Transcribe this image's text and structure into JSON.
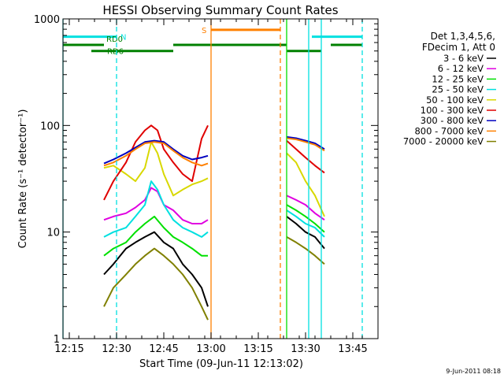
{
  "chart_data": {
    "type": "line",
    "title": "HESSI Observing Summary Count Rates",
    "xlabel": "Start Time (09-Jun-11 12:13:02)",
    "ylabel": "Count Rate (s⁻¹ detector⁻¹)",
    "y_scale": "log",
    "ylim": [
      1,
      1000
    ],
    "xlim": [
      "12:13",
      "13:53"
    ],
    "x_ticks": [
      "12:15",
      "12:30",
      "12:45",
      "13:00",
      "13:15",
      "13:30",
      "13:45"
    ],
    "y_ticks": [
      "1",
      "10",
      "100",
      "1000"
    ],
    "grid": false,
    "legend_position": "right",
    "legend_header": [
      "Det 1,3,4,5,6,",
      "FDecim 1, Att 0"
    ],
    "footer": "9-Jun-2011 08:18",
    "series": [
      {
        "name": "3 - 6 keV",
        "color": "#000000",
        "segments": [
          {
            "t": [
              "12:26",
              "12:29",
              "12:33",
              "12:36",
              "12:39",
              "12:42",
              "12:45",
              "12:48",
              "12:51",
              "12:54",
              "12:57",
              "12:59"
            ],
            "v": [
              4,
              5,
              7,
              8,
              9,
              10,
              8,
              7,
              5,
              4,
              3,
              2
            ]
          },
          {
            "t": [
              "13:24",
              "13:27",
              "13:30",
              "13:33",
              "13:36"
            ],
            "v": [
              14,
              12,
              10,
              9,
              7
            ]
          }
        ]
      },
      {
        "name": "6 - 12 keV",
        "color": "#e000e0",
        "segments": [
          {
            "t": [
              "12:26",
              "12:29",
              "12:33",
              "12:36",
              "12:39",
              "12:41",
              "12:43",
              "12:45",
              "12:48",
              "12:51",
              "12:54",
              "12:57",
              "12:59"
            ],
            "v": [
              13,
              14,
              15,
              17,
              20,
              26,
              24,
              18,
              16,
              13,
              12,
              12,
              13
            ]
          },
          {
            "t": [
              "13:24",
              "13:27",
              "13:30",
              "13:33",
              "13:36"
            ],
            "v": [
              22,
              20,
              18,
              15,
              13
            ]
          }
        ]
      },
      {
        "name": "12 - 25 keV",
        "color": "#00e000",
        "segments": [
          {
            "t": [
              "12:26",
              "12:29",
              "12:33",
              "12:36",
              "12:39",
              "12:42",
              "12:45",
              "12:48",
              "12:51",
              "12:54",
              "12:57",
              "12:59"
            ],
            "v": [
              6,
              7,
              8,
              10,
              12,
              14,
              11,
              9,
              8,
              7,
              6,
              6
            ]
          },
          {
            "t": [
              "13:24",
              "13:27",
              "13:30",
              "13:33",
              "13:36"
            ],
            "v": [
              18,
              16,
              14,
              12,
              10
            ]
          }
        ]
      },
      {
        "name": "25 - 50 keV",
        "color": "#00e0e0",
        "segments": [
          {
            "t": [
              "12:26",
              "12:29",
              "12:33",
              "12:36",
              "12:39",
              "12:41",
              "12:43",
              "12:45",
              "12:48",
              "12:51",
              "12:54",
              "12:57",
              "12:59"
            ],
            "v": [
              9,
              10,
              11,
              14,
              18,
              30,
              25,
              18,
              13,
              11,
              10,
              9,
              10
            ]
          },
          {
            "t": [
              "13:24",
              "13:27",
              "13:30",
              "13:33",
              "13:36"
            ],
            "v": [
              16,
              14,
              12,
              11,
              9
            ]
          }
        ]
      },
      {
        "name": "50 - 100 keV",
        "color": "#d8d800",
        "segments": [
          {
            "t": [
              "12:26",
              "12:29",
              "12:33",
              "12:36",
              "12:39",
              "12:41",
              "12:43",
              "12:45",
              "12:48",
              "12:51",
              "12:54",
              "12:57",
              "12:59"
            ],
            "v": [
              40,
              42,
              35,
              30,
              40,
              70,
              55,
              35,
              22,
              25,
              28,
              30,
              32
            ]
          },
          {
            "t": [
              "13:24",
              "13:27",
              "13:30",
              "13:33",
              "13:36"
            ],
            "v": [
              55,
              45,
              30,
              22,
              14
            ]
          }
        ]
      },
      {
        "name": "100 - 300 keV",
        "color": "#e00000",
        "segments": [
          {
            "t": [
              "12:26",
              "12:29",
              "12:33",
              "12:36",
              "12:39",
              "12:41",
              "12:43",
              "12:45",
              "12:48",
              "12:51",
              "12:54",
              "12:57",
              "12:59"
            ],
            "v": [
              20,
              30,
              45,
              70,
              90,
              100,
              90,
              60,
              45,
              35,
              30,
              75,
              100
            ]
          },
          {
            "t": [
              "13:24",
              "13:27",
              "13:30",
              "13:33",
              "13:36"
            ],
            "v": [
              72,
              60,
              50,
              42,
              36
            ]
          }
        ]
      },
      {
        "name": "300 - 800 keV",
        "color": "#0000c0",
        "segments": [
          {
            "t": [
              "12:26",
              "12:29",
              "12:33",
              "12:36",
              "12:39",
              "12:42",
              "12:45",
              "12:48",
              "12:51",
              "12:54",
              "12:57",
              "12:59"
            ],
            "v": [
              44,
              48,
              55,
              62,
              70,
              72,
              70,
              60,
              52,
              48,
              50,
              52
            ]
          },
          {
            "t": [
              "13:24",
              "13:27",
              "13:30",
              "13:33",
              "13:36"
            ],
            "v": [
              78,
              76,
              72,
              68,
              60
            ]
          }
        ]
      },
      {
        "name": "800 - 7000 keV",
        "color": "#ff8000",
        "segments": [
          {
            "t": [
              "12:26",
              "12:29",
              "12:33",
              "12:36",
              "12:39",
              "12:42",
              "12:45",
              "12:48",
              "12:51",
              "12:54",
              "12:57",
              "12:59"
            ],
            "v": [
              42,
              45,
              52,
              60,
              68,
              70,
              68,
              58,
              50,
              45,
              42,
              44
            ]
          },
          {
            "t": [
              "13:24",
              "13:27",
              "13:30",
              "13:33",
              "13:36"
            ],
            "v": [
              76,
              74,
              70,
              66,
              58
            ]
          }
        ]
      },
      {
        "name": "7000 - 20000 keV",
        "color": "#808000",
        "segments": [
          {
            "t": [
              "12:26",
              "12:29",
              "12:33",
              "12:36",
              "12:39",
              "12:42",
              "12:45",
              "12:48",
              "12:51",
              "12:54",
              "12:57",
              "12:59"
            ],
            "v": [
              2,
              3,
              4,
              5,
              6,
              7,
              6,
              5,
              4,
              3,
              2,
              1.5
            ]
          },
          {
            "t": [
              "13:24",
              "13:27",
              "13:30",
              "13:33",
              "13:36"
            ],
            "v": [
              9,
              8,
              7,
              6,
              5
            ]
          }
        ]
      }
    ],
    "flags": [
      {
        "label": "N",
        "color": "#00e0e0",
        "value": 680,
        "intervals": [
          [
            "12:13",
            "12:30"
          ],
          [
            "13:32",
            "13:48"
          ]
        ]
      },
      {
        "label": "RD0",
        "color": "#008000",
        "value": 570,
        "intervals": [
          [
            "12:13",
            "12:26"
          ],
          [
            "12:48",
            "13:24"
          ],
          [
            "13:38",
            "13:48"
          ]
        ]
      },
      {
        "label": "RD6",
        "color": "#008000",
        "value": 500,
        "intervals": [
          [
            "12:22",
            "12:48"
          ],
          [
            "13:24",
            "13:35"
          ]
        ]
      },
      {
        "label": "S",
        "color": "#ff8000",
        "value": 790,
        "intervals": [
          [
            "13:00",
            "13:22"
          ]
        ]
      }
    ],
    "vertical_lines": [
      {
        "t": "12:13",
        "color": "#00e0e0",
        "style": "solid"
      },
      {
        "t": "12:30",
        "color": "#00e0e0",
        "style": "dashed"
      },
      {
        "t": "13:00",
        "color": "#ff8000",
        "style": "solid"
      },
      {
        "t": "13:22",
        "color": "#ff8000",
        "style": "dashed"
      },
      {
        "t": "13:24",
        "color": "#00e000",
        "style": "solid"
      },
      {
        "t": "13:31",
        "color": "#00e0e0",
        "style": "solid"
      },
      {
        "t": "13:35",
        "color": "#00e0e0",
        "style": "solid"
      },
      {
        "t": "13:48",
        "color": "#00e0e0",
        "style": "dashed"
      }
    ]
  }
}
